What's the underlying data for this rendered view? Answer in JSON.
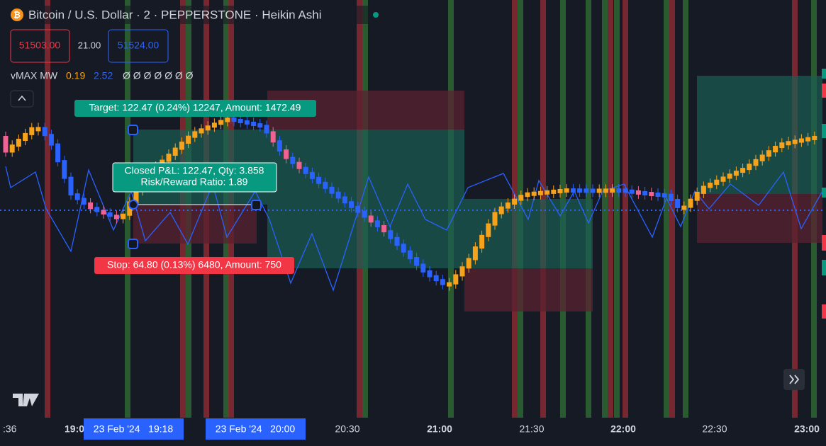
{
  "header": {
    "title": "Bitcoin / U.S. Dollar · 2 · PEPPERSTONE · Heikin Ashi",
    "logo": "₿"
  },
  "quote": {
    "sell": "51503.00",
    "spread": "21.00",
    "buy": "51524.00"
  },
  "indicator": {
    "name": "vMAX MW",
    "value1": "0.19",
    "value2": "2.52",
    "others": "Ø Ø Ø Ø Ø Ø Ø"
  },
  "annotations": {
    "target": "Target: 122.47 (0.24%) 12247, Amount: 1472.49",
    "closed_line1": "Closed P&L: 122.47, Qty: 3.858",
    "closed_line2": "Risk/Reward Ratio: 1.89",
    "stop": "Stop: 64.80 (0.13%) 6480, Amount: 750"
  },
  "x_axis": {
    "labels": [
      ":36",
      "19:0",
      "20:30",
      "21:00",
      "21:30",
      "22:00",
      "22:30",
      "23:00"
    ],
    "highlight1": "23 Feb '24   19:18",
    "highlight2": "23 Feb '24   20:00"
  }
}
